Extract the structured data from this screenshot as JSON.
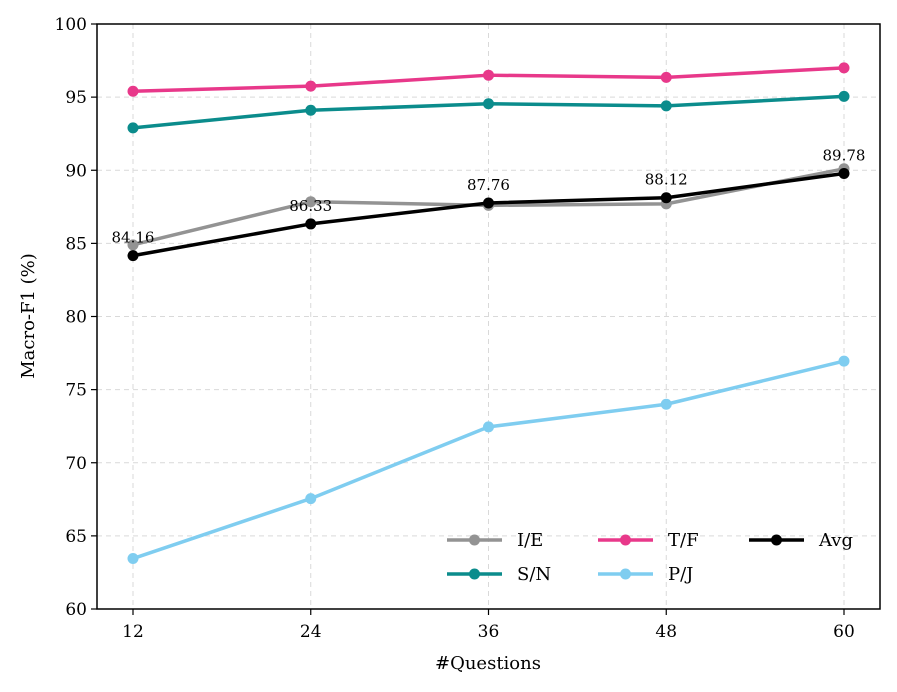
{
  "chart_data": {
    "type": "line",
    "title": "",
    "xlabel": "#Questions",
    "ylabel": "Macro-F1 (%)",
    "x": [
      12,
      24,
      36,
      48,
      60
    ],
    "x_tick_labels": [
      "12",
      "24",
      "36",
      "48",
      "60"
    ],
    "ylim": [
      60,
      100
    ],
    "y_ticks": [
      60,
      65,
      70,
      75,
      80,
      85,
      90,
      95,
      100
    ],
    "y_tick_labels": [
      "60",
      "65",
      "70",
      "75",
      "80",
      "85",
      "90",
      "95",
      "100"
    ],
    "grid": true,
    "legend_position": "bottom-right",
    "series": [
      {
        "name": "I/E",
        "color": "#939393",
        "values": [
          84.9,
          87.85,
          87.6,
          87.7,
          90.1
        ]
      },
      {
        "name": "S/N",
        "color": "#0b8c8c",
        "values": [
          92.9,
          94.1,
          94.55,
          94.4,
          95.05
        ]
      },
      {
        "name": "T/F",
        "color": "#e8388a",
        "values": [
          95.4,
          95.75,
          96.5,
          96.35,
          97.0
        ]
      },
      {
        "name": "P/J",
        "color": "#7fcdf0",
        "values": [
          63.45,
          67.55,
          72.45,
          74.0,
          76.95
        ]
      },
      {
        "name": "Avg",
        "color": "#000000",
        "values": [
          84.16,
          86.33,
          87.76,
          88.12,
          89.78
        ]
      }
    ],
    "annotations": [
      {
        "x": 12,
        "y": 84.16,
        "text": "84.16"
      },
      {
        "x": 24,
        "y": 86.33,
        "text": "86.33"
      },
      {
        "x": 36,
        "y": 87.76,
        "text": "87.76"
      },
      {
        "x": 48,
        "y": 88.12,
        "text": "88.12"
      },
      {
        "x": 60,
        "y": 89.78,
        "text": "89.78"
      }
    ]
  }
}
